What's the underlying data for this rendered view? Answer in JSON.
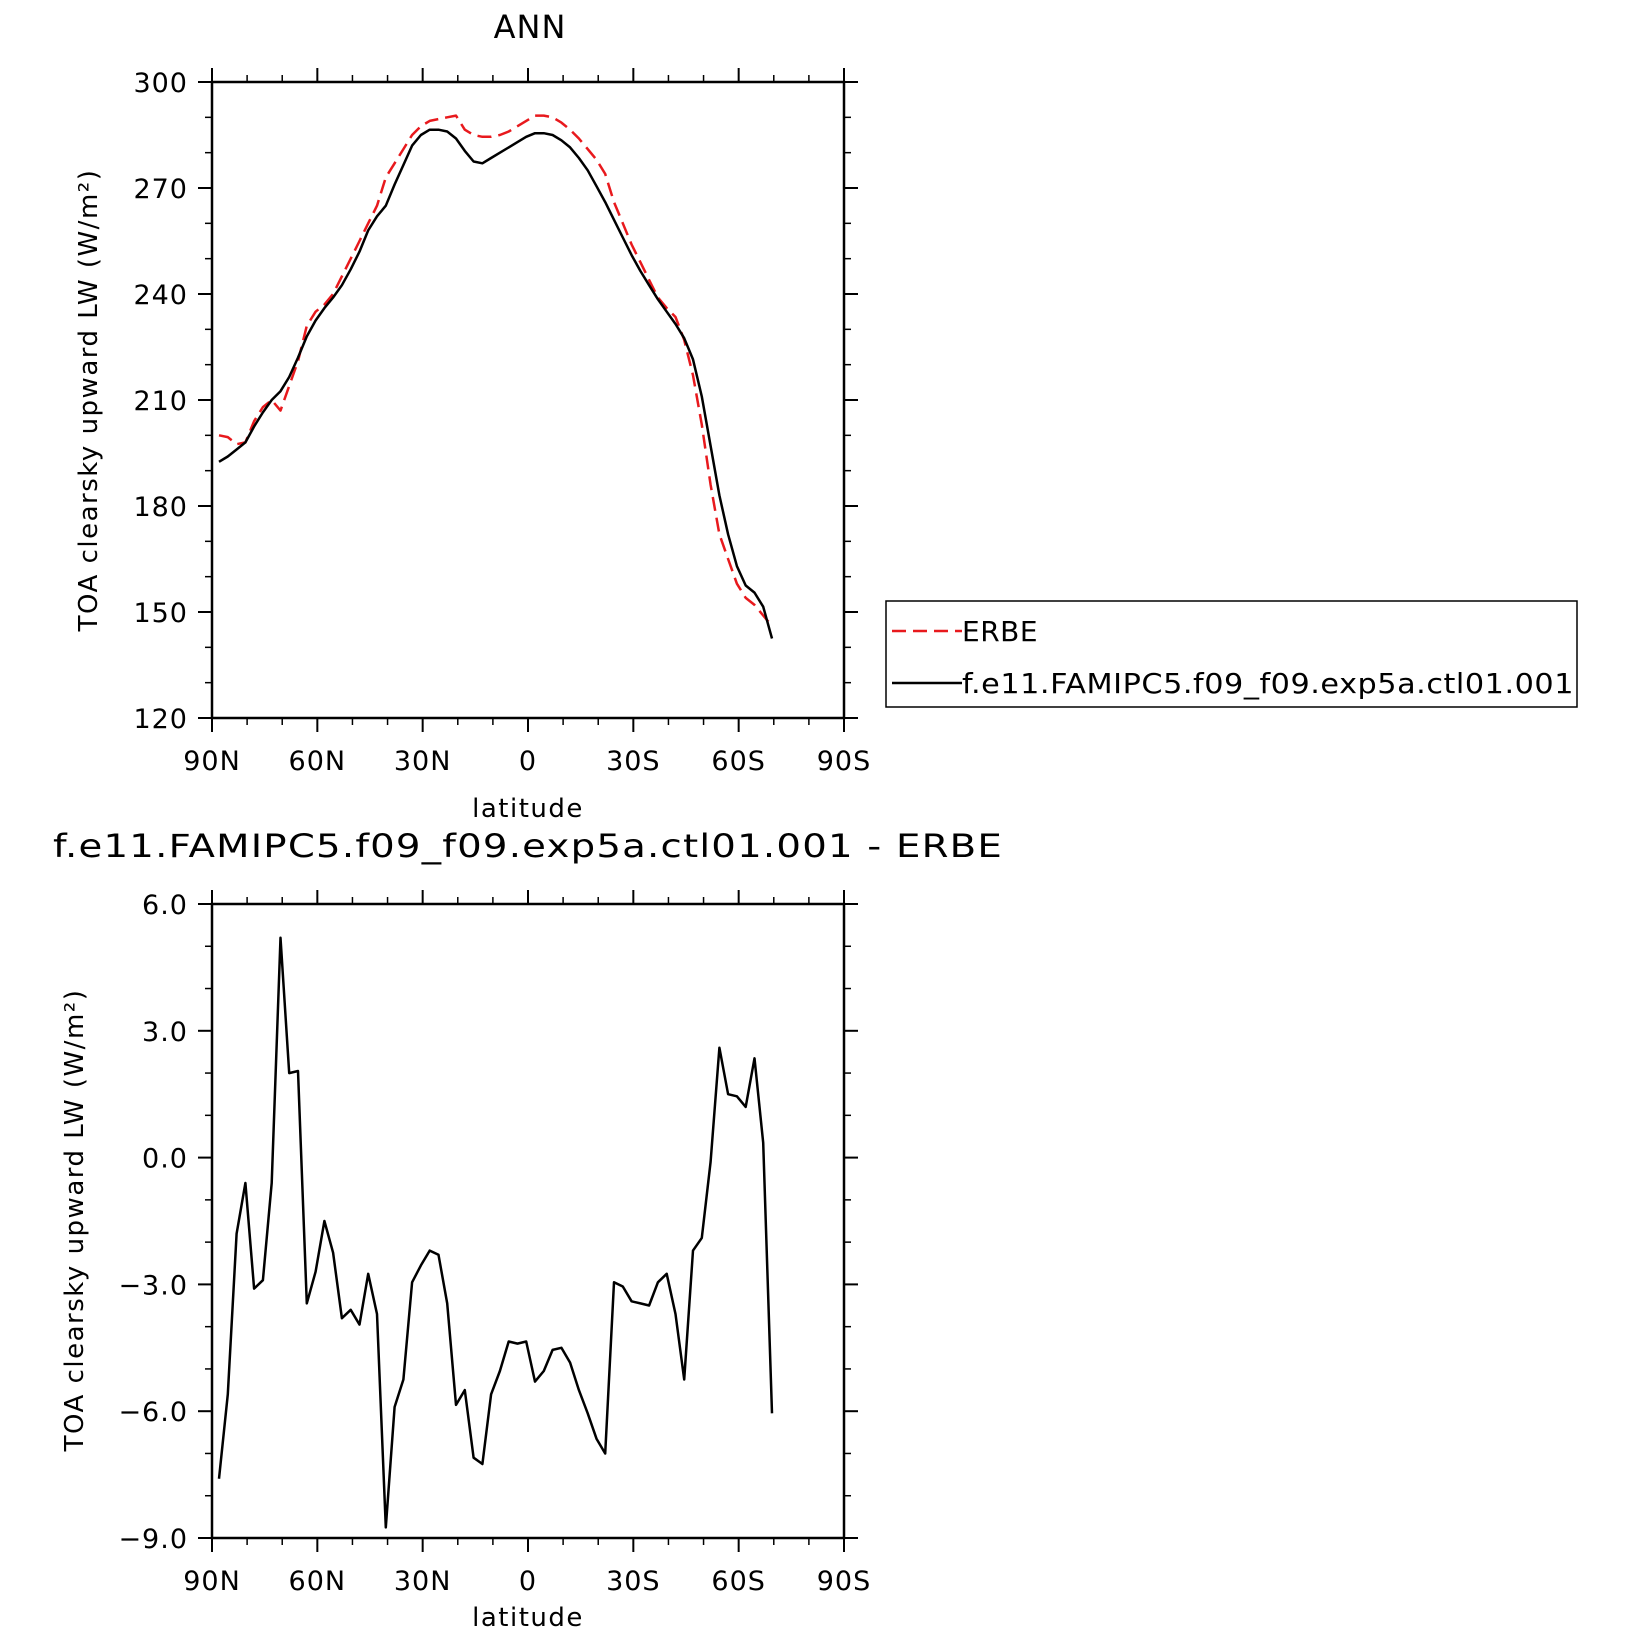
{
  "chart_data": [
    {
      "type": "line",
      "title": "ANN",
      "xlabel": "latitude",
      "ylabel": "TOA clearsky upward LW (W/m²)",
      "xlim": [
        90,
        -90
      ],
      "ylim": [
        120,
        300
      ],
      "x_ticks": [
        90,
        60,
        30,
        0,
        -30,
        -60,
        -90
      ],
      "x_tick_labels": [
        "90N",
        "60N",
        "30N",
        "0",
        "30S",
        "60S",
        "90S"
      ],
      "y_ticks": [
        120,
        150,
        180,
        210,
        240,
        270,
        300
      ],
      "y_tick_labels": [
        "120",
        "150",
        "180",
        "210",
        "240",
        "270",
        "300"
      ],
      "legend_position": "right",
      "series": [
        {
          "name": "ERBE",
          "color": "#e8191d",
          "dash": true,
          "points": [
            [
              88,
              200
            ],
            [
              85.5,
              199.5
            ],
            [
              83,
              197.5
            ],
            [
              80.5,
              198
            ],
            [
              78,
              204
            ],
            [
              75.5,
              208
            ],
            [
              73,
              210
            ],
            [
              70.5,
              207
            ],
            [
              68,
              214
            ],
            [
              65.5,
              221
            ],
            [
              63,
              231
            ],
            [
              60.5,
              235
            ],
            [
              58,
              237
            ],
            [
              55.5,
              240
            ],
            [
              53,
              245
            ],
            [
              50.5,
              250
            ],
            [
              48,
              255
            ],
            [
              45.5,
              260
            ],
            [
              43,
              265
            ],
            [
              40.5,
              273
            ],
            [
              38,
              277
            ],
            [
              35.5,
              281
            ],
            [
              33,
              285
            ],
            [
              30.5,
              287.5
            ],
            [
              28,
              289
            ],
            [
              25.5,
              289.5
            ],
            [
              23,
              290
            ],
            [
              20.5,
              290.5
            ],
            [
              18,
              286.5
            ],
            [
              15.5,
              285
            ],
            [
              13,
              284.5
            ],
            [
              10.5,
              284.5
            ],
            [
              8,
              285
            ],
            [
              5.5,
              286
            ],
            [
              3,
              287.5
            ],
            [
              0.5,
              289
            ],
            [
              -2,
              290.5
            ],
            [
              -4.5,
              290.5
            ],
            [
              -7,
              290
            ],
            [
              -9.5,
              288.5
            ],
            [
              -12,
              286.5
            ],
            [
              -14.5,
              284
            ],
            [
              -17,
              281
            ],
            [
              -19.5,
              278
            ],
            [
              -22,
              274
            ],
            [
              -24.5,
              266
            ],
            [
              -27,
              260
            ],
            [
              -29.5,
              254
            ],
            [
              -32,
              249
            ],
            [
              -34.5,
              244
            ],
            [
              -37,
              239
            ],
            [
              -39.5,
              236
            ],
            [
              -42,
              233.5
            ],
            [
              -44.5,
              227
            ],
            [
              -47,
              217
            ],
            [
              -49.5,
              203
            ],
            [
              -52,
              186
            ],
            [
              -54.5,
              172
            ],
            [
              -57,
              165
            ],
            [
              -59.5,
              158
            ],
            [
              -62,
              154
            ],
            [
              -64.5,
              152
            ],
            [
              -67,
              149
            ],
            [
              -69.5,
              146
            ]
          ]
        },
        {
          "name": "f.e11.FAMIPC5.f09_f09.exp5a.ctl01.001",
          "color": "#000000",
          "dash": false,
          "points": [
            [
              88,
              192.5
            ],
            [
              85.5,
              194
            ],
            [
              83,
              196
            ],
            [
              80.5,
              198
            ],
            [
              78,
              202.5
            ],
            [
              75.5,
              206.5
            ],
            [
              73,
              210
            ],
            [
              70.5,
              212.5
            ],
            [
              68,
              216.5
            ],
            [
              65.5,
              222
            ],
            [
              63,
              228
            ],
            [
              60.5,
              232.5
            ],
            [
              58,
              236
            ],
            [
              55.5,
              239
            ],
            [
              53,
              242.5
            ],
            [
              50.5,
              247
            ],
            [
              48,
              252
            ],
            [
              45.5,
              258
            ],
            [
              43,
              262
            ],
            [
              40.5,
              265
            ],
            [
              38,
              271
            ],
            [
              35.5,
              276.5
            ],
            [
              33,
              282
            ],
            [
              30.5,
              285
            ],
            [
              28,
              286.5
            ],
            [
              25.5,
              286.5
            ],
            [
              23,
              286
            ],
            [
              20.5,
              284
            ],
            [
              18,
              280.5
            ],
            [
              15.5,
              277.5
            ],
            [
              13,
              277
            ],
            [
              10.5,
              278.5
            ],
            [
              8,
              280
            ],
            [
              5.5,
              281.5
            ],
            [
              3,
              283
            ],
            [
              0.5,
              284.5
            ],
            [
              -2,
              285.5
            ],
            [
              -4.5,
              285.5
            ],
            [
              -7,
              285
            ],
            [
              -9.5,
              283.5
            ],
            [
              -12,
              281.5
            ],
            [
              -14.5,
              278.5
            ],
            [
              -17,
              275
            ],
            [
              -19.5,
              270.5
            ],
            [
              -22,
              266
            ],
            [
              -24.5,
              261
            ],
            [
              -27,
              256
            ],
            [
              -29.5,
              251
            ],
            [
              -32,
              246.5
            ],
            [
              -34.5,
              242.5
            ],
            [
              -37,
              238.5
            ],
            [
              -39.5,
              235
            ],
            [
              -42,
              231.5
            ],
            [
              -44.5,
              227.5
            ],
            [
              -47,
              221.5
            ],
            [
              -49.5,
              211
            ],
            [
              -52,
              197
            ],
            [
              -54.5,
              183
            ],
            [
              -57,
              172
            ],
            [
              -59.5,
              163
            ],
            [
              -62,
              157.5
            ],
            [
              -64.5,
              155.5
            ],
            [
              -67,
              151.5
            ],
            [
              -69.5,
              142.5
            ]
          ]
        }
      ]
    },
    {
      "type": "line",
      "title": "f.e11.FAMIPC5.f09_f09.exp5a.ctl01.001 - ERBE",
      "xlabel": "latitude",
      "ylabel": "TOA clearsky upward LW (W/m²)",
      "xlim": [
        90,
        -90
      ],
      "ylim": [
        -9.0,
        6.0
      ],
      "x_ticks": [
        90,
        60,
        30,
        0,
        -30,
        -60,
        -90
      ],
      "x_tick_labels": [
        "90N",
        "60N",
        "30N",
        "0",
        "30S",
        "60S",
        "90S"
      ],
      "y_ticks": [
        -9.0,
        -6.0,
        -3.0,
        0.0,
        3.0,
        6.0
      ],
      "y_tick_labels": [
        "−9.0",
        "−6.0",
        "−3.0",
        "0.0",
        "3.0",
        "6.0"
      ],
      "series": [
        {
          "color": "#000000",
          "dash": false,
          "points": [
            [
              88,
              -7.6
            ],
            [
              85.5,
              -5.6
            ],
            [
              83,
              -1.8
            ],
            [
              80.5,
              -0.6
            ],
            [
              78,
              -3.1
            ],
            [
              75.5,
              -2.9
            ],
            [
              73,
              -0.6
            ],
            [
              70.5,
              5.2
            ],
            [
              68,
              2.0
            ],
            [
              65.5,
              2.05
            ],
            [
              63,
              -3.45
            ],
            [
              60.5,
              -2.7
            ],
            [
              58,
              -1.5
            ],
            [
              55.5,
              -2.25
            ],
            [
              53,
              -3.8
            ],
            [
              50.5,
              -3.6
            ],
            [
              48,
              -3.95
            ],
            [
              45.5,
              -2.75
            ],
            [
              43,
              -3.7
            ],
            [
              40.5,
              -8.75
            ],
            [
              38,
              -5.9
            ],
            [
              35.5,
              -5.25
            ],
            [
              33,
              -2.95
            ],
            [
              30.5,
              -2.55
            ],
            [
              28,
              -2.2
            ],
            [
              25.5,
              -2.3
            ],
            [
              23,
              -3.45
            ],
            [
              20.5,
              -5.85
            ],
            [
              18,
              -5.5
            ],
            [
              15.5,
              -7.1
            ],
            [
              13,
              -7.25
            ],
            [
              10.5,
              -5.6
            ],
            [
              8,
              -5.05
            ],
            [
              5.5,
              -4.35
            ],
            [
              3,
              -4.4
            ],
            [
              0.5,
              -4.35
            ],
            [
              -2,
              -5.3
            ],
            [
              -4.5,
              -5.05
            ],
            [
              -7,
              -4.55
            ],
            [
              -9.5,
              -4.5
            ],
            [
              -12,
              -4.85
            ],
            [
              -14.5,
              -5.5
            ],
            [
              -17,
              -6.05
            ],
            [
              -19.5,
              -6.65
            ],
            [
              -22,
              -7.0
            ],
            [
              -24.5,
              -2.95
            ],
            [
              -27,
              -3.05
            ],
            [
              -29.5,
              -3.4
            ],
            [
              -32,
              -3.45
            ],
            [
              -34.5,
              -3.5
            ],
            [
              -37,
              -2.95
            ],
            [
              -39.5,
              -2.75
            ],
            [
              -42,
              -3.7
            ],
            [
              -44.5,
              -5.25
            ],
            [
              -47,
              -2.2
            ],
            [
              -49.5,
              -1.9
            ],
            [
              -52,
              -0.1
            ],
            [
              -54.5,
              2.6
            ],
            [
              -57,
              1.5
            ],
            [
              -59.5,
              1.45
            ],
            [
              -62,
              1.2
            ],
            [
              -64.5,
              2.35
            ],
            [
              -67,
              0.35
            ],
            [
              -69.5,
              -6.05
            ]
          ]
        }
      ]
    }
  ]
}
